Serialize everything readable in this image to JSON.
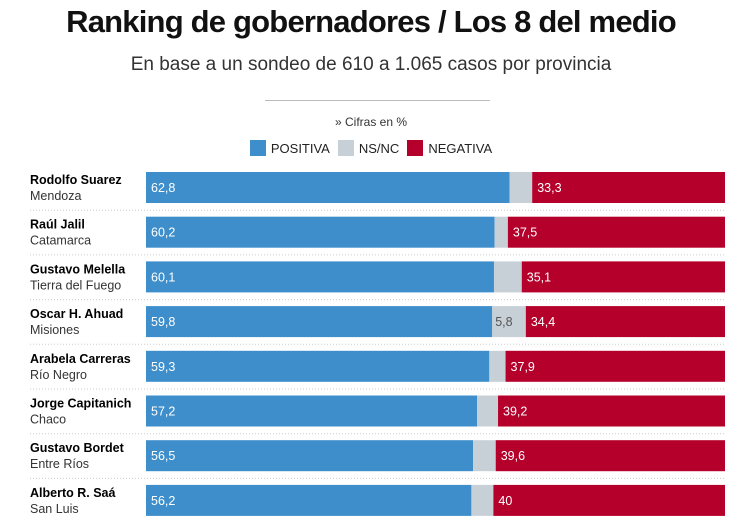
{
  "chart_data": {
    "type": "bar",
    "orientation": "horizontal-stacked",
    "title": "Ranking de gobernadores / Los 8 del medio",
    "subtitle": "En base a un sondeo de 610 a 1.065 casos por provincia",
    "note": "» Cifras en %",
    "legend": [
      "POSITIVA",
      "NS/NC",
      "NEGATIVA"
    ],
    "legend_position": "top",
    "colors": {
      "positiva": "#3e8ecb",
      "nsnc": "#c8d0d7",
      "negativa": "#b4002a"
    },
    "xlim": [
      0,
      100
    ],
    "rows": [
      {
        "name": "Rodolfo Suarez",
        "province": "Mendoza",
        "positiva": 62.8,
        "nsnc": 3.9,
        "negativa": 33.3,
        "pos_label": "62,8",
        "ns_label": "",
        "neg_label": "33,3"
      },
      {
        "name": "Raúl Jalil",
        "province": "Catamarca",
        "positiva": 60.2,
        "nsnc": 2.3,
        "negativa": 37.5,
        "pos_label": "60,2",
        "ns_label": "",
        "neg_label": "37,5"
      },
      {
        "name": "Gustavo Melella",
        "province": "Tierra del Fuego",
        "positiva": 60.1,
        "nsnc": 4.8,
        "negativa": 35.1,
        "pos_label": "60,1",
        "ns_label": "",
        "neg_label": "35,1"
      },
      {
        "name": "Oscar H. Ahuad",
        "province": "Misiones",
        "positiva": 59.8,
        "nsnc": 5.8,
        "negativa": 34.4,
        "pos_label": "59,8",
        "ns_label": "5,8",
        "neg_label": "34,4"
      },
      {
        "name": "Arabela Carreras",
        "province": "Río Negro",
        "positiva": 59.3,
        "nsnc": 2.8,
        "negativa": 37.9,
        "pos_label": "59,3",
        "ns_label": "",
        "neg_label": "37,9"
      },
      {
        "name": "Jorge Capitanich",
        "province": "Chaco",
        "positiva": 57.2,
        "nsnc": 3.6,
        "negativa": 39.2,
        "pos_label": "57,2",
        "ns_label": "",
        "neg_label": "39,2"
      },
      {
        "name": "Gustavo Bordet",
        "province": "Entre Ríos",
        "positiva": 56.5,
        "nsnc": 3.9,
        "negativa": 39.6,
        "pos_label": "56,5",
        "ns_label": "",
        "neg_label": "39,6"
      },
      {
        "name": "Alberto R. Saá",
        "province": "San Luis",
        "positiva": 56.2,
        "nsnc": 3.8,
        "negativa": 40,
        "pos_label": "56,2",
        "ns_label": "",
        "neg_label": "40"
      }
    ]
  }
}
